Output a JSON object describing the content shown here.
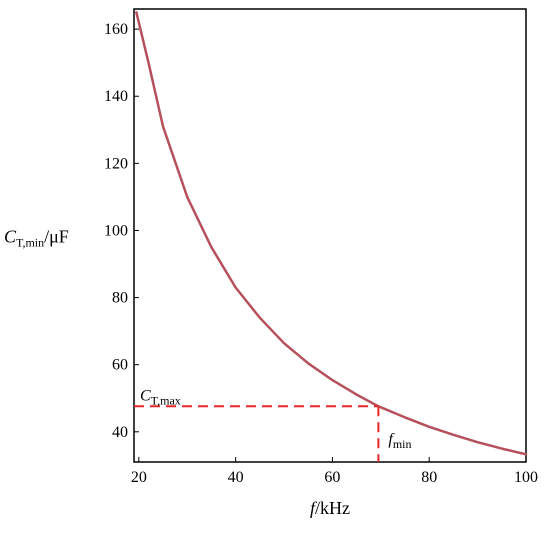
{
  "chart_data": {
    "type": "line",
    "xlabel": {
      "italic": "f",
      "rest": "/kHz"
    },
    "ylabel": {
      "italic": "C",
      "sub": "T,min",
      "rest": "/μF"
    },
    "xlim": [
      19,
      100
    ],
    "ylim": [
      31,
      166
    ],
    "xticks": [
      20,
      40,
      60,
      80,
      100
    ],
    "yticks": [
      40,
      60,
      80,
      100,
      120,
      140,
      160
    ],
    "grid": false,
    "series": [
      {
        "color": "#b5505c",
        "x": [
          19.5,
          22,
          25,
          30,
          35,
          40,
          45,
          50,
          55,
          60,
          65,
          69.5,
          75,
          80,
          85,
          90,
          95,
          100
        ],
        "y": [
          165,
          150,
          131,
          110,
          95,
          83,
          74,
          66.4,
          60.4,
          55.4,
          51.1,
          47.6,
          44.3,
          41.5,
          39.1,
          36.9,
          35.0,
          33.3
        ]
      }
    ],
    "annotations": {
      "marker_x": 69.5,
      "marker_y": 47.6,
      "marker_color": "#e8262a",
      "ct_max": {
        "italic": "C",
        "sub": "T,max"
      },
      "f_min": {
        "italic": "f",
        "sub": "min"
      }
    }
  }
}
